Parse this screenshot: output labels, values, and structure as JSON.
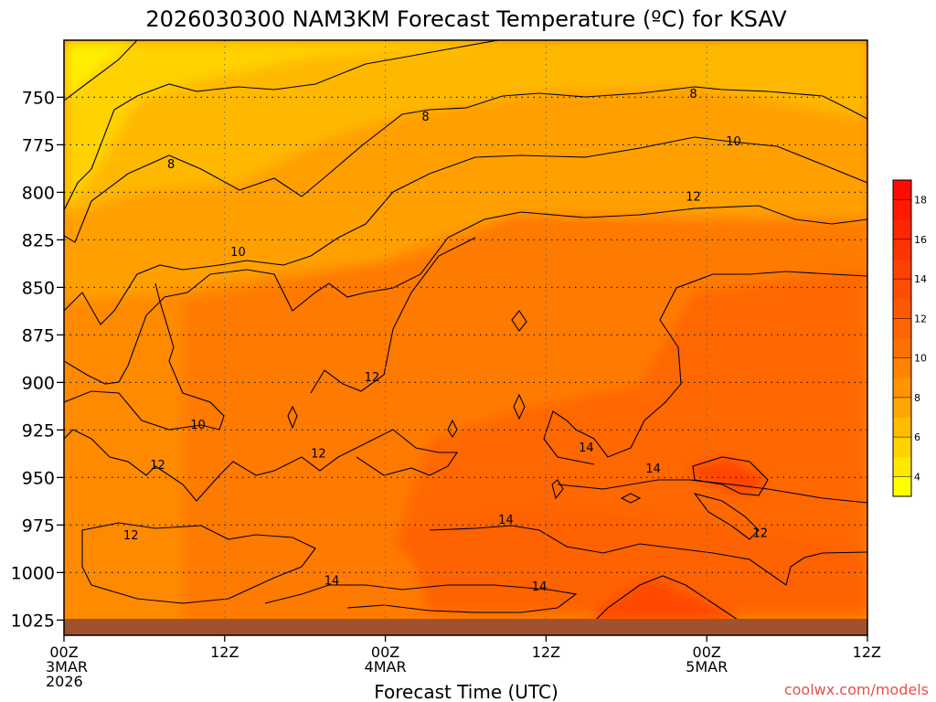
{
  "chart_data": {
    "type": "heatmap",
    "title": "2026030300 NAM3KM Forecast Temperature (ºC) for KSAV",
    "xlabel": "Forecast Time (UTC)",
    "ylabel": "",
    "credit": "coolwx.com/models",
    "x_ticks": [
      {
        "hour": 0,
        "lines": [
          "00Z",
          "3MAR",
          "2026"
        ]
      },
      {
        "hour": 12,
        "lines": [
          "12Z"
        ]
      },
      {
        "hour": 24,
        "lines": [
          "00Z",
          "4MAR"
        ]
      },
      {
        "hour": 36,
        "lines": [
          "12Z"
        ]
      },
      {
        "hour": 48,
        "lines": [
          "00Z",
          "5MAR"
        ]
      },
      {
        "hour": 60,
        "lines": [
          "12Z"
        ]
      }
    ],
    "xlim": [
      0,
      60
    ],
    "ylim": [
      1033,
      720
    ],
    "y_ticks": [
      750,
      775,
      800,
      825,
      850,
      875,
      900,
      925,
      950,
      975,
      1000,
      1025
    ],
    "colorbar": {
      "boundaries": [
        3,
        4,
        5,
        6,
        7,
        8,
        9,
        10,
        11,
        12,
        13,
        14,
        15,
        16,
        17,
        18,
        19
      ],
      "labels": [
        "4",
        "6",
        "8",
        "10",
        "12",
        "14",
        "16",
        "18"
      ],
      "colors": [
        "#ffff00",
        "#ffe800",
        "#ffd200",
        "#ffbc00",
        "#ffa600",
        "#ff9400",
        "#ff8200",
        "#ff7000",
        "#ff6400",
        "#ff5800",
        "#ff4c00",
        "#ff4000",
        "#ff3400",
        "#ff2600",
        "#ff1a00",
        "#ff0c00"
      ]
    },
    "ground_color": "#a0522d",
    "contour_labels": [
      {
        "text": "8",
        "hour": 8.0,
        "p": 785
      },
      {
        "text": "8",
        "hour": 27.0,
        "p": 760
      },
      {
        "text": "8",
        "hour": 47.0,
        "p": 748
      },
      {
        "text": "10",
        "hour": 50.0,
        "p": 773
      },
      {
        "text": "12",
        "hour": 47.0,
        "p": 802
      },
      {
        "text": "10",
        "hour": 13.0,
        "p": 831
      },
      {
        "text": "12",
        "hour": 23.0,
        "p": 897
      },
      {
        "text": "10",
        "hour": 10.0,
        "p": 922
      },
      {
        "text": "12",
        "hour": 19.0,
        "p": 937
      },
      {
        "text": "12",
        "hour": 7.0,
        "p": 943
      },
      {
        "text": "14",
        "hour": 39.0,
        "p": 934
      },
      {
        "text": "14",
        "hour": 44.0,
        "p": 945
      },
      {
        "text": "14",
        "hour": 33.0,
        "p": 972
      },
      {
        "text": "12",
        "hour": 52.0,
        "p": 979
      },
      {
        "text": "12",
        "hour": 5.0,
        "p": 980
      },
      {
        "text": "14",
        "hour": 20.0,
        "p": 1004
      },
      {
        "text": "14",
        "hour": 35.5,
        "p": 1007
      }
    ]
  }
}
